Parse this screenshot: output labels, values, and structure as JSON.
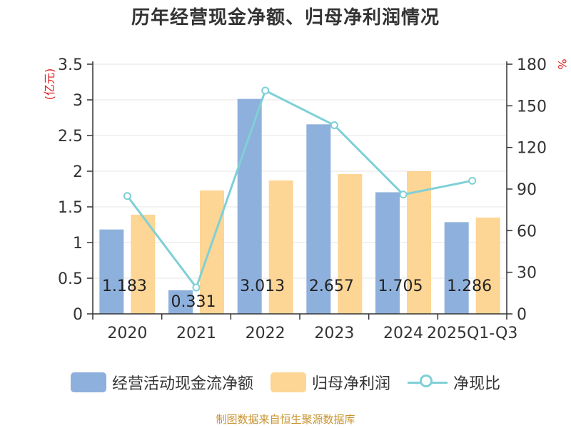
{
  "chart_data": {
    "type": "bar",
    "title": "历年经营现金净额、归母净利润情况",
    "categories": [
      "2020",
      "2021",
      "2022",
      "2023",
      "2024",
      "2025Q1-Q3"
    ],
    "left_axis": {
      "unit": "(亿元)",
      "ylim": [
        0,
        3.5
      ],
      "ticks": [
        "0",
        "0.5",
        "1",
        "1.5",
        "2",
        "2.5",
        "3",
        "3.5"
      ]
    },
    "right_axis": {
      "unit": "%",
      "ylim": [
        0,
        180
      ],
      "ticks": [
        "0",
        "30",
        "60",
        "90",
        "120",
        "150",
        "180"
      ]
    },
    "series": [
      {
        "name": "经营活动现金流净额",
        "type": "bar",
        "axis": "left",
        "values": [
          1.183,
          0.331,
          3.013,
          2.657,
          1.705,
          1.286
        ],
        "labels": [
          "1.183",
          "0.331",
          "3.013",
          "2.657",
          "1.705",
          "1.286"
        ]
      },
      {
        "name": "归母净利润",
        "type": "bar",
        "axis": "left",
        "values": [
          1.39,
          1.73,
          1.87,
          1.96,
          2.0,
          1.35
        ]
      },
      {
        "name": "净现比",
        "type": "line",
        "axis": "right",
        "values": [
          85,
          19,
          161,
          136,
          86,
          96
        ]
      }
    ],
    "colors": {
      "cash_flow": "#8eb0dc",
      "net_profit": "#fdd594",
      "ratio": "#7fd0d6",
      "unit_text": "#e02020"
    },
    "legend_position": "bottom",
    "grid": true
  },
  "footer": {
    "source": "制图数据来自恒生聚源数据库"
  }
}
